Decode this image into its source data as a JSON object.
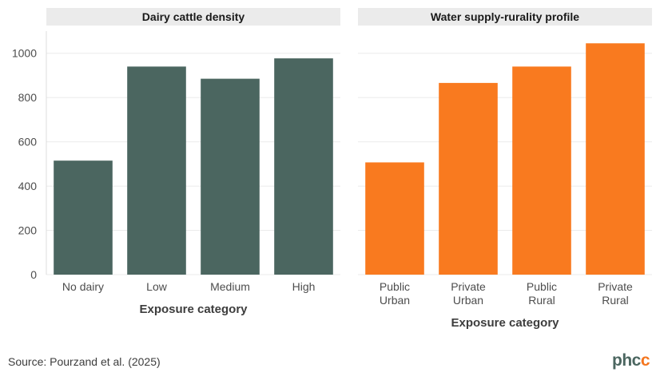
{
  "chart_data": [
    {
      "type": "bar",
      "title": "Dairy cattle density",
      "categories": [
        "No dairy",
        "Low",
        "Medium",
        "High"
      ],
      "values": [
        515,
        940,
        885,
        977
      ],
      "xlabel": "Exposure category",
      "ylabel": "",
      "ylim": [
        0,
        1100
      ],
      "yticks": [
        0,
        200,
        400,
        600,
        800,
        1000
      ],
      "color": "#4b6660"
    },
    {
      "type": "bar",
      "title": "Water supply-rurality profile",
      "categories": [
        [
          "Public",
          "Urban"
        ],
        [
          "Private",
          "Urban"
        ],
        [
          "Public",
          "Rural"
        ],
        [
          "Private",
          "Rural"
        ]
      ],
      "values": [
        507,
        866,
        940,
        1045
      ],
      "xlabel": "Exposure category",
      "ylabel": "",
      "ylim": [
        0,
        1100
      ],
      "color": "#f97a1f"
    }
  ],
  "source": "Source: Pourzand et al. (2025)",
  "logo": {
    "main": "phc",
    "accent": "c"
  },
  "colors": {
    "strip_bg": "#ebebeb",
    "grid": "#ebebeb"
  }
}
